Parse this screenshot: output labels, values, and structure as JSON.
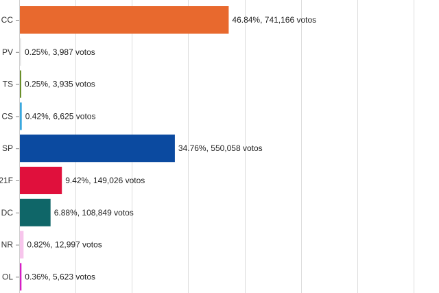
{
  "chart_data": {
    "type": "bar",
    "orientation": "horizontal",
    "categories": [
      "CC",
      "PV",
      "TS",
      "CS",
      "SP",
      "21F",
      "DC",
      "NR",
      "OL"
    ],
    "series": [
      {
        "values": [
          741166,
          3987,
          3935,
          6625,
          550058,
          149026,
          108849,
          12997,
          5623
        ],
        "percents": [
          "46.84%",
          "0.25%",
          "0.25%",
          "0.42%",
          "34.76%",
          "9.42%",
          "6.88%",
          "0.82%",
          "0.36%"
        ],
        "colors": [
          "#e8692e",
          "#e9e9e9",
          "#6a8f2a",
          "#3aa8de",
          "#0b4aa0",
          "#e0103c",
          "#0f6668",
          "#f7c5ec",
          "#d61ec5"
        ]
      }
    ],
    "data_labels": [
      "46.84%,  741,166 votos",
      "0.25%,  3,987 votos",
      "0.25%,  3,935 votos",
      "0.42%,  6,625 votos",
      "34.76%,  550,058 votos",
      "9.42%,  149,026 votos",
      "6.88%,  108,849 votos",
      "0.82%,  12,997 votos",
      "0.36%,  5,623 votos"
    ],
    "xlim": [
      0,
      1400000
    ],
    "grid": true,
    "legend": "none"
  }
}
